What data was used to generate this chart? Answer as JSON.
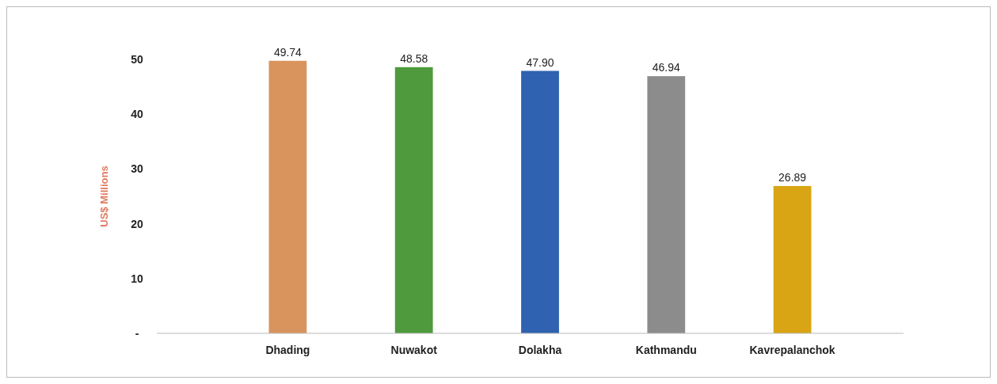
{
  "chart_data": {
    "type": "bar",
    "ylabel": "US$ Millions",
    "categories": [
      "Dhading",
      "Nuwakot",
      "Dolakha",
      "Kathmandu",
      "Kavrepalanchok"
    ],
    "values": [
      49.74,
      48.58,
      47.9,
      46.94,
      26.89
    ],
    "colors": [
      "#d9945e",
      "#4e9a3c",
      "#2f62b0",
      "#8c8c8c",
      "#d9a514"
    ],
    "value_labels": [
      "49.74",
      "48.58",
      "47.90",
      "46.94",
      "26.89"
    ],
    "ylim": [
      0,
      50
    ],
    "yticks": [
      {
        "value": 0,
        "label": "-"
      },
      10,
      20,
      30,
      40,
      50
    ],
    "grid": false
  }
}
